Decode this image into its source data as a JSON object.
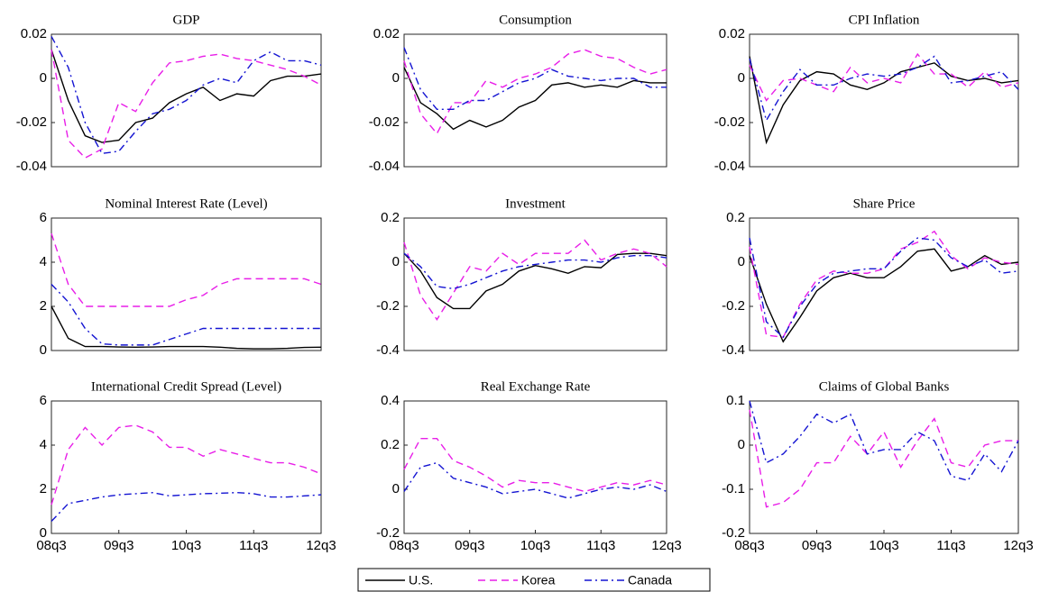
{
  "chart_data": [
    {
      "type": "line",
      "title": "GDP",
      "ylim": [
        -0.04,
        0.02
      ],
      "yticks": [
        -0.04,
        -0.02,
        0,
        0.02
      ],
      "series": [
        {
          "name": "U.S.",
          "color": "#000000",
          "linestyle": "solid",
          "values": [
            0.013,
            -0.01,
            -0.026,
            -0.029,
            -0.028,
            -0.02,
            -0.018,
            -0.011,
            -0.007,
            -0.004,
            -0.01,
            -0.007,
            -0.008,
            -0.001,
            0.001,
            0.001,
            0.002
          ]
        },
        {
          "name": "Korea",
          "color": "#e81ee8",
          "linestyle": "dashed",
          "values": [
            0.013,
            -0.028,
            -0.036,
            -0.032,
            -0.011,
            -0.015,
            -0.002,
            0.007,
            0.008,
            0.01,
            0.011,
            0.009,
            0.008,
            0.006,
            0.004,
            0.001,
            -0.003
          ]
        },
        {
          "name": "Canada",
          "color": "#1414d2",
          "linestyle": "dashdot",
          "values": [
            0.019,
            0.005,
            -0.02,
            -0.034,
            -0.033,
            -0.024,
            -0.016,
            -0.014,
            -0.01,
            -0.003,
            0.0,
            -0.002,
            0.008,
            0.012,
            0.008,
            0.008,
            0.006
          ]
        }
      ]
    },
    {
      "type": "line",
      "title": "Consumption",
      "ylim": [
        -0.04,
        0.02
      ],
      "yticks": [
        -0.04,
        -0.02,
        0,
        0.02
      ],
      "series": [
        {
          "name": "U.S.",
          "color": "#000000",
          "linestyle": "solid",
          "values": [
            0.005,
            -0.011,
            -0.016,
            -0.023,
            -0.019,
            -0.022,
            -0.019,
            -0.013,
            -0.01,
            -0.003,
            -0.002,
            -0.004,
            -0.003,
            -0.004,
            -0.001,
            -0.002,
            -0.002
          ]
        },
        {
          "name": "Korea",
          "color": "#e81ee8",
          "linestyle": "dashed",
          "values": [
            0.008,
            -0.016,
            -0.025,
            -0.011,
            -0.011,
            -0.001,
            -0.004,
            0.0,
            0.002,
            0.005,
            0.011,
            0.013,
            0.01,
            0.009,
            0.005,
            0.002,
            0.004
          ]
        },
        {
          "name": "Canada",
          "color": "#1414d2",
          "linestyle": "dashdot",
          "values": [
            0.014,
            -0.005,
            -0.014,
            -0.014,
            -0.01,
            -0.01,
            -0.006,
            -0.002,
            0.0,
            0.004,
            0.001,
            0.0,
            -0.001,
            0.0,
            0.0,
            -0.004,
            -0.004
          ]
        }
      ]
    },
    {
      "type": "line",
      "title": "CPI Inflation",
      "ylim": [
        -0.04,
        0.02
      ],
      "yticks": [
        -0.04,
        -0.02,
        0,
        0.02
      ],
      "series": [
        {
          "name": "U.S.",
          "color": "#000000",
          "linestyle": "solid",
          "values": [
            0.01,
            -0.029,
            -0.012,
            -0.001,
            0.003,
            0.002,
            -0.003,
            -0.005,
            -0.002,
            0.003,
            0.005,
            0.007,
            0.001,
            -0.001,
            0.0,
            -0.002,
            -0.001
          ]
        },
        {
          "name": "Korea",
          "color": "#e81ee8",
          "linestyle": "dashed",
          "values": [
            0.006,
            -0.01,
            -0.001,
            0.0,
            -0.003,
            -0.006,
            0.005,
            -0.002,
            0.0,
            -0.002,
            0.011,
            0.002,
            0.002,
            -0.004,
            0.003,
            -0.004,
            -0.002
          ]
        },
        {
          "name": "Canada",
          "color": "#1414d2",
          "linestyle": "dashdot",
          "values": [
            0.009,
            -0.019,
            -0.006,
            0.004,
            -0.003,
            -0.003,
            0.0,
            0.002,
            0.001,
            0.002,
            0.005,
            0.01,
            -0.002,
            -0.001,
            0.001,
            0.003,
            -0.005
          ]
        }
      ]
    },
    {
      "type": "line",
      "title": "Nominal Interest Rate (Level)",
      "ylim": [
        0,
        6
      ],
      "yticks": [
        0,
        2,
        4,
        6
      ],
      "series": [
        {
          "name": "U.S.",
          "color": "#000000",
          "linestyle": "solid",
          "values": [
            2.0,
            0.55,
            0.18,
            0.18,
            0.16,
            0.15,
            0.16,
            0.18,
            0.18,
            0.18,
            0.15,
            0.1,
            0.08,
            0.08,
            0.1,
            0.14,
            0.15
          ]
        },
        {
          "name": "Korea",
          "color": "#e81ee8",
          "linestyle": "dashed",
          "values": [
            5.3,
            3.0,
            2.0,
            2.0,
            2.0,
            2.0,
            2.0,
            2.0,
            2.3,
            2.5,
            3.0,
            3.25,
            3.25,
            3.25,
            3.25,
            3.25,
            3.0
          ]
        },
        {
          "name": "Canada",
          "color": "#1414d2",
          "linestyle": "dashdot",
          "values": [
            3.0,
            2.2,
            1.0,
            0.3,
            0.25,
            0.25,
            0.25,
            0.5,
            0.75,
            1.0,
            1.0,
            1.0,
            1.0,
            1.0,
            1.0,
            1.0,
            1.0
          ]
        }
      ]
    },
    {
      "type": "line",
      "title": "Investment",
      "ylim": [
        -0.4,
        0.2
      ],
      "yticks": [
        -0.4,
        -0.2,
        0,
        0.2
      ],
      "series": [
        {
          "name": "U.S.",
          "color": "#000000",
          "linestyle": "solid",
          "values": [
            0.04,
            -0.04,
            -0.16,
            -0.21,
            -0.21,
            -0.13,
            -0.1,
            -0.04,
            -0.015,
            -0.03,
            -0.05,
            -0.02,
            -0.025,
            0.035,
            0.04,
            0.04,
            0.03
          ]
        },
        {
          "name": "Korea",
          "color": "#e81ee8",
          "linestyle": "dashed",
          "values": [
            0.09,
            -0.15,
            -0.26,
            -0.14,
            -0.02,
            -0.04,
            0.04,
            -0.01,
            0.04,
            0.04,
            0.04,
            0.1,
            0.01,
            0.04,
            0.06,
            0.04,
            -0.02
          ]
        },
        {
          "name": "Canada",
          "color": "#1414d2",
          "linestyle": "dashdot",
          "values": [
            0.04,
            -0.02,
            -0.11,
            -0.12,
            -0.1,
            -0.07,
            -0.04,
            -0.02,
            -0.01,
            0.0,
            0.01,
            0.01,
            0.0,
            0.02,
            0.03,
            0.03,
            0.02
          ]
        }
      ]
    },
    {
      "type": "line",
      "title": "Share Price",
      "ylim": [
        -0.4,
        0.2
      ],
      "yticks": [
        -0.4,
        -0.2,
        0,
        0.2
      ],
      "series": [
        {
          "name": "U.S.",
          "color": "#000000",
          "linestyle": "solid",
          "values": [
            0.03,
            -0.19,
            -0.36,
            -0.25,
            -0.13,
            -0.07,
            -0.05,
            -0.07,
            -0.07,
            -0.02,
            0.05,
            0.06,
            -0.04,
            -0.02,
            0.03,
            -0.01,
            0.0
          ]
        },
        {
          "name": "Korea",
          "color": "#e81ee8",
          "linestyle": "dashed",
          "values": [
            0.07,
            -0.33,
            -0.34,
            -0.19,
            -0.08,
            -0.04,
            -0.05,
            -0.05,
            -0.03,
            0.06,
            0.09,
            0.14,
            0.03,
            -0.03,
            0.02,
            0.0,
            -0.01
          ]
        },
        {
          "name": "Canada",
          "color": "#1414d2",
          "linestyle": "dashdot",
          "values": [
            0.11,
            -0.27,
            -0.34,
            -0.2,
            -0.1,
            -0.05,
            -0.04,
            -0.03,
            -0.03,
            0.05,
            0.11,
            0.1,
            0.02,
            -0.02,
            0.01,
            -0.05,
            -0.04
          ]
        }
      ]
    },
    {
      "type": "line",
      "title": "International Credit Spread (Level)",
      "ylim": [
        0,
        6
      ],
      "yticks": [
        0,
        2,
        4,
        6
      ],
      "categories": [
        "08q3",
        null,
        null,
        null,
        "09q3",
        null,
        null,
        null,
        "10q3",
        null,
        null,
        null,
        "11q3",
        null,
        null,
        null,
        "12q3"
      ],
      "series": [
        {
          "name": "Korea",
          "color": "#e81ee8",
          "linestyle": "dashed",
          "values": [
            1.3,
            3.8,
            4.8,
            4.0,
            4.8,
            4.9,
            4.6,
            3.9,
            3.9,
            3.5,
            3.8,
            3.6,
            3.4,
            3.2,
            3.2,
            3.0,
            2.7
          ]
        },
        {
          "name": "Canada",
          "color": "#1414d2",
          "linestyle": "dashdot",
          "values": [
            0.55,
            1.35,
            1.5,
            1.65,
            1.75,
            1.8,
            1.85,
            1.7,
            1.75,
            1.8,
            1.82,
            1.85,
            1.8,
            1.65,
            1.65,
            1.7,
            1.75
          ]
        }
      ]
    },
    {
      "type": "line",
      "title": "Real Exchange Rate",
      "ylim": [
        -0.2,
        0.4
      ],
      "yticks": [
        -0.2,
        0,
        0.2,
        0.4
      ],
      "categories": [
        "08q3",
        null,
        null,
        null,
        "09q3",
        null,
        null,
        null,
        "10q3",
        null,
        null,
        null,
        "11q3",
        null,
        null,
        null,
        "12q3"
      ],
      "series": [
        {
          "name": "Korea",
          "color": "#e81ee8",
          "linestyle": "dashed",
          "values": [
            0.09,
            0.23,
            0.23,
            0.13,
            0.1,
            0.06,
            0.01,
            0.04,
            0.03,
            0.03,
            0.01,
            -0.01,
            0.01,
            0.03,
            0.02,
            0.04,
            0.02
          ]
        },
        {
          "name": "Canada",
          "color": "#1414d2",
          "linestyle": "dashdot",
          "values": [
            -0.01,
            0.1,
            0.12,
            0.05,
            0.03,
            0.01,
            -0.02,
            -0.01,
            0.0,
            -0.02,
            -0.04,
            -0.02,
            0.0,
            0.01,
            0.0,
            0.02,
            -0.01
          ]
        }
      ]
    },
    {
      "type": "line",
      "title": "Claims of Global Banks",
      "ylim": [
        -0.2,
        0.1
      ],
      "yticks": [
        -0.2,
        -0.1,
        0,
        0.1
      ],
      "categories": [
        "08q3",
        null,
        null,
        null,
        "09q3",
        null,
        null,
        null,
        "10q3",
        null,
        null,
        null,
        "11q3",
        null,
        null,
        null,
        "12q3"
      ],
      "series": [
        {
          "name": "Korea",
          "color": "#e81ee8",
          "linestyle": "dashed",
          "values": [
            0.08,
            -0.14,
            -0.13,
            -0.1,
            -0.04,
            -0.04,
            0.02,
            -0.02,
            0.03,
            -0.05,
            0.01,
            0.06,
            -0.04,
            -0.05,
            0.0,
            0.01,
            0.01
          ]
        },
        {
          "name": "Canada",
          "color": "#1414d2",
          "linestyle": "dashdot",
          "values": [
            0.1,
            -0.04,
            -0.02,
            0.02,
            0.07,
            0.05,
            0.07,
            -0.02,
            -0.01,
            -0.01,
            0.03,
            0.01,
            -0.07,
            -0.08,
            -0.02,
            -0.06,
            0.01
          ]
        }
      ]
    }
  ]
}
